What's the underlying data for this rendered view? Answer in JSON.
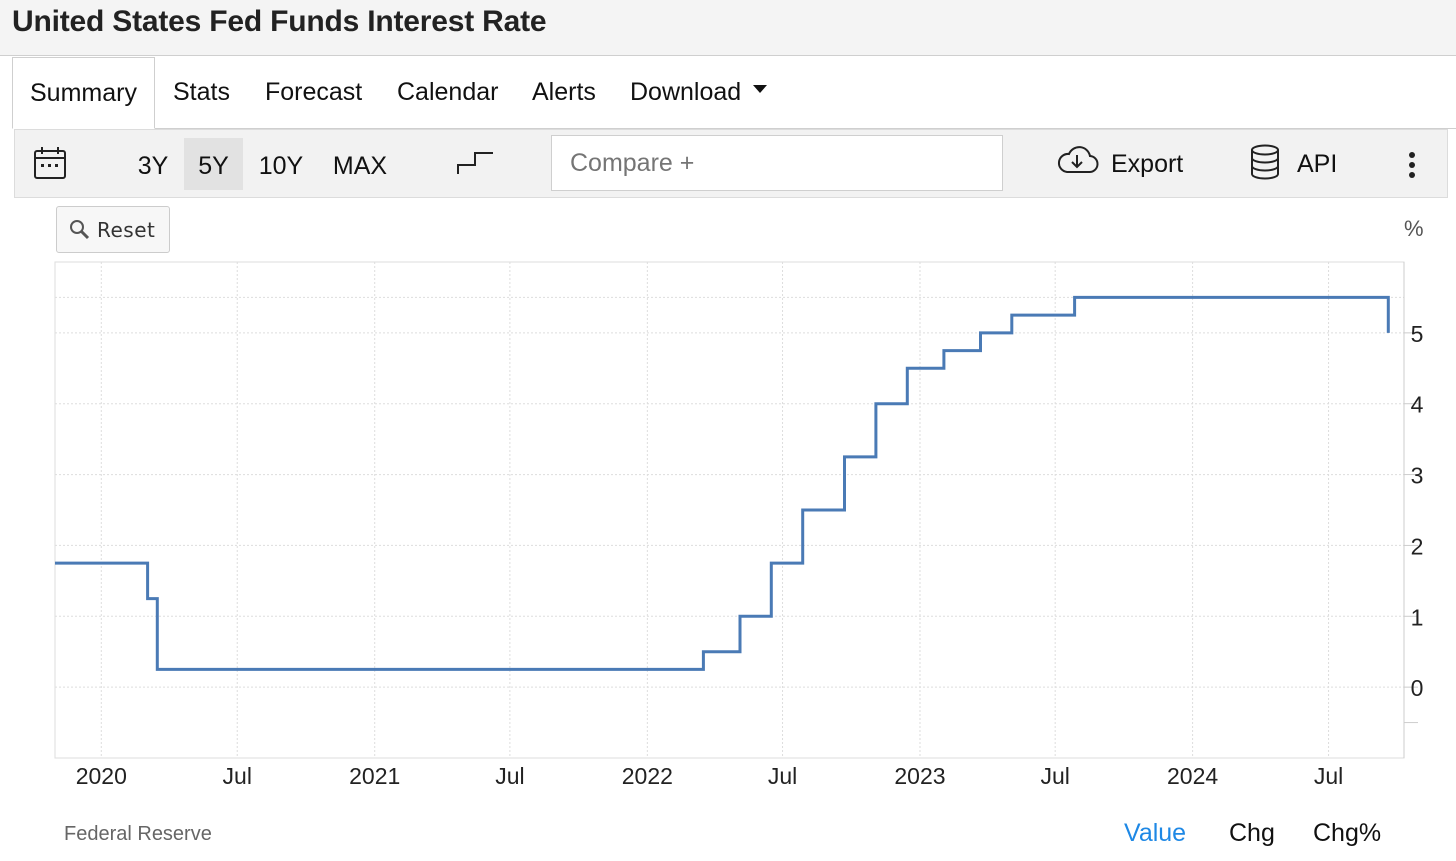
{
  "title": "United States Fed Funds Interest Rate",
  "tabs": [
    {
      "label": "Summary",
      "active": true
    },
    {
      "label": "Stats"
    },
    {
      "label": "Forecast"
    },
    {
      "label": "Calendar"
    },
    {
      "label": "Alerts"
    },
    {
      "label": "Download"
    }
  ],
  "toolbar": {
    "calendar_icon": "calendar-icon",
    "ranges": [
      {
        "label": "3Y",
        "selected": false
      },
      {
        "label": "5Y",
        "selected": true
      },
      {
        "label": "10Y",
        "selected": false
      },
      {
        "label": "MAX",
        "selected": false
      }
    ],
    "chart_type_icon": "step-line-icon",
    "compare_placeholder": "Compare +",
    "export_label": "Export",
    "export_icon": "cloud-download-icon",
    "api_label": "API",
    "api_icon": "database-icon",
    "more_icon": "more-vertical-icon"
  },
  "reset_label": "Reset",
  "unit_label": "%",
  "source": "Federal Reserve",
  "footer_buttons": [
    {
      "label": "Value",
      "active": true
    },
    {
      "label": "Chg",
      "active": false
    },
    {
      "label": "Chg%",
      "active": false
    }
  ],
  "colors": {
    "line": "#4a7ab5",
    "active_link": "#1e88e5",
    "grid": "#dddddd"
  },
  "chart_data": {
    "type": "line",
    "step": true,
    "series": [
      {
        "values": [
          [
            "2019-10-31",
            1.75
          ],
          [
            "2020-03-03",
            1.25
          ],
          [
            "2020-03-16",
            0.25
          ],
          [
            "2022-03-17",
            0.5
          ],
          [
            "2022-05-05",
            1.0
          ],
          [
            "2022-06-16",
            1.75
          ],
          [
            "2022-07-28",
            2.5
          ],
          [
            "2022-09-22",
            3.25
          ],
          [
            "2022-11-03",
            4.0
          ],
          [
            "2022-12-15",
            4.5
          ],
          [
            "2023-02-02",
            4.75
          ],
          [
            "2023-03-23",
            5.0
          ],
          [
            "2023-05-04",
            5.25
          ],
          [
            "2023-07-27",
            5.5
          ],
          [
            "2024-09-19",
            5.0
          ]
        ]
      }
    ],
    "x_range": [
      "2019-10-31",
      "2024-10-10"
    ],
    "y_range": [
      -1,
      6
    ],
    "y_ticks": [
      0,
      1,
      2,
      3,
      4,
      5
    ],
    "x_ticks": [
      {
        "date": "2020-01-01",
        "label": "2020"
      },
      {
        "date": "2020-07-01",
        "label": "Jul"
      },
      {
        "date": "2021-01-01",
        "label": "2021"
      },
      {
        "date": "2021-07-01",
        "label": "Jul"
      },
      {
        "date": "2022-01-01",
        "label": "2022"
      },
      {
        "date": "2022-07-01",
        "label": "Jul"
      },
      {
        "date": "2023-01-01",
        "label": "2023"
      },
      {
        "date": "2023-07-01",
        "label": "Jul"
      },
      {
        "date": "2024-01-01",
        "label": "2024"
      },
      {
        "date": "2024-07-01",
        "label": "Jul"
      }
    ],
    "grid": true,
    "y_axis_position": "right"
  }
}
